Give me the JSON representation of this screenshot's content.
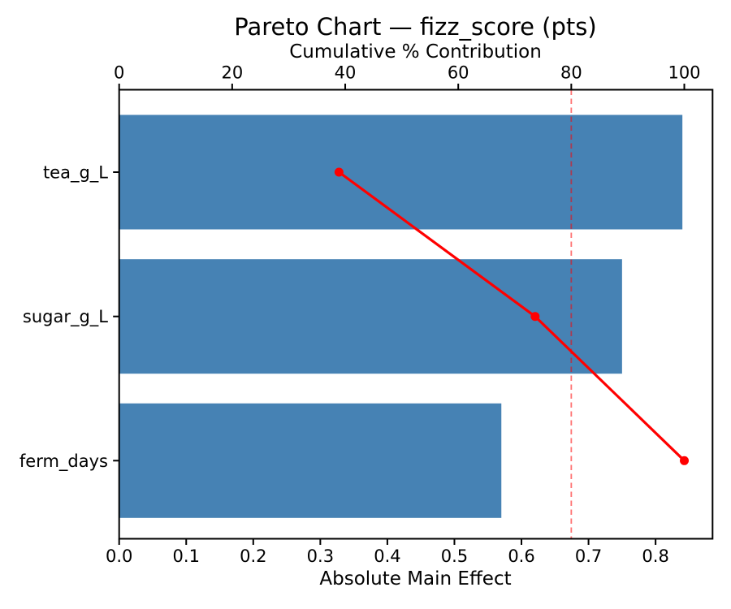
{
  "chart_data": {
    "type": "bar",
    "subtype": "pareto",
    "orientation": "horizontal",
    "title": "Pareto Chart — fizz_score (pts)",
    "categories": [
      "tea_g_L",
      "sugar_g_L",
      "ferm_days"
    ],
    "series": [
      {
        "name": "Absolute Main Effect",
        "type": "bar",
        "axis": "bottom",
        "values": [
          0.84,
          0.75,
          0.57
        ],
        "color": "#4682b4"
      },
      {
        "name": "Cumulative % Contribution",
        "type": "line",
        "axis": "top",
        "values": [
          38.9,
          73.6,
          100.0
        ],
        "color": "#ff0000",
        "marker": "circle"
      }
    ],
    "axes": {
      "bottom": {
        "label": "Absolute Main Effect",
        "ticks": [
          0.0,
          0.1,
          0.2,
          0.3,
          0.4,
          0.5,
          0.6,
          0.7,
          0.8
        ],
        "tick_labels": [
          "0.0",
          "0.1",
          "0.2",
          "0.3",
          "0.4",
          "0.5",
          "0.6",
          "0.7",
          "0.8"
        ],
        "range": [
          0,
          0.885
        ]
      },
      "top": {
        "label": "Cumulative % Contribution",
        "ticks": [
          0,
          20,
          40,
          60,
          80,
          100
        ],
        "tick_labels": [
          "0",
          "20",
          "40",
          "60",
          "80",
          "100"
        ],
        "range": [
          0,
          105
        ]
      }
    },
    "reference_line": {
      "axis": "top",
      "value": 80,
      "style": "dashed",
      "color": "#ff0000",
      "opacity": 0.55
    },
    "grid": false,
    "legend": "none",
    "colors": {
      "bar": "#4682b4",
      "line": "#ff0000",
      "spine": "#000000",
      "background": "#ffffff"
    }
  }
}
